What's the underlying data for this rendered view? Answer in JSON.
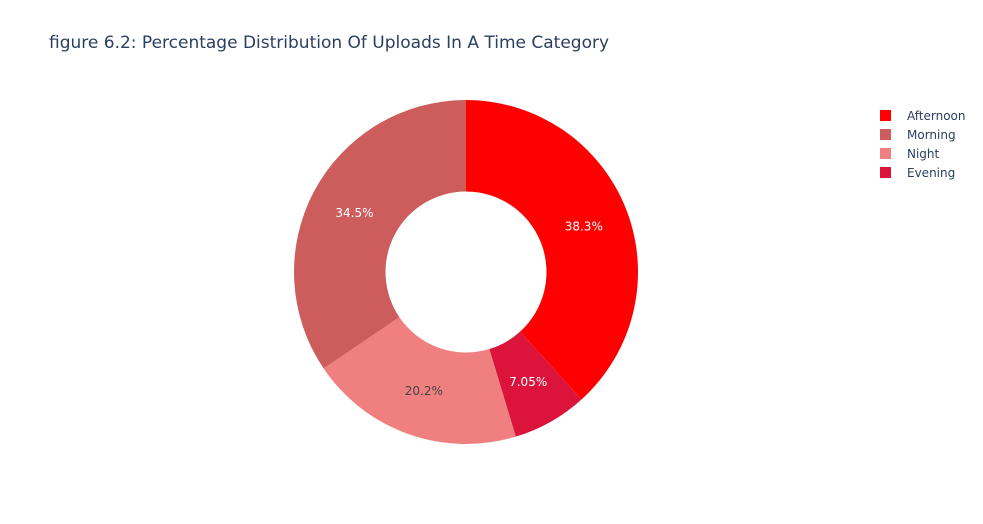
{
  "chart_data": {
    "type": "pie",
    "title": "figure 6.2: Percentage Distribution Of Uploads In A Time Category",
    "hole": 0.4,
    "direction": "clockwise",
    "rotation_start": "top",
    "slices": [
      {
        "label": "Afternoon",
        "percent": 38.3,
        "display": "38.3%",
        "color": "#ff0000",
        "text_color": "#ffffff"
      },
      {
        "label": "Evening",
        "percent": 7.05,
        "display": "7.05%",
        "color": "#dc143c",
        "text_color": "#ffffff"
      },
      {
        "label": "Night",
        "percent": 20.2,
        "display": "20.2%",
        "color": "#f08080",
        "text_color": "#444444"
      },
      {
        "label": "Morning",
        "percent": 34.5,
        "display": "34.5%",
        "color": "#cd5c5c",
        "text_color": "#ffffff"
      }
    ],
    "legend": {
      "position": "top-right",
      "order": [
        "Afternoon",
        "Morning",
        "Night",
        "Evening"
      ]
    }
  }
}
